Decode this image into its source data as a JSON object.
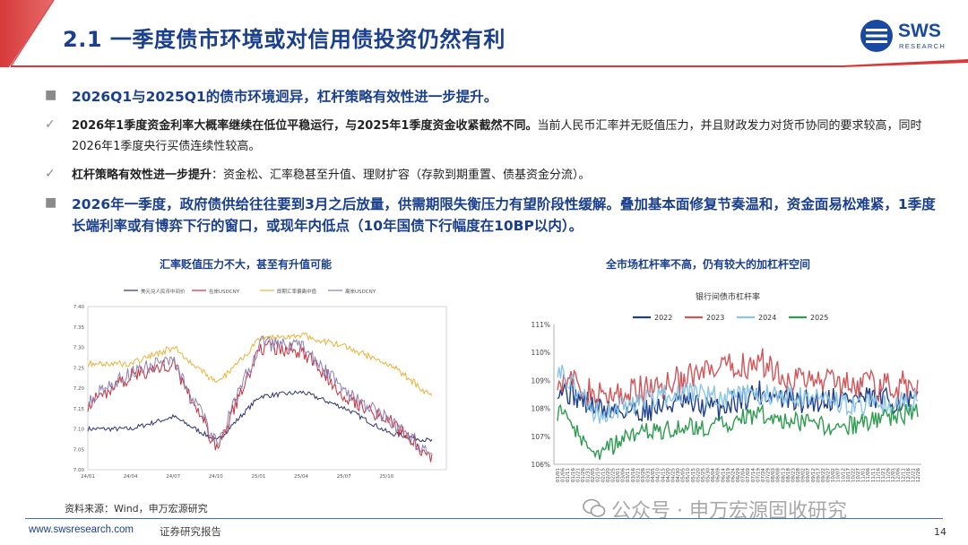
{
  "title": "2.1 一季度债市环境或对信用债投资仍然有利",
  "logo": {
    "text": "SWS",
    "sub": "RESEARCH"
  },
  "bullets": [
    {
      "level": 1,
      "marker": "■",
      "text": "2026Q1与2025Q1的债市环境迥异，杠杆策略有效性进一步提升。"
    },
    {
      "level": 2,
      "marker": "✓",
      "bold": "2026年1季度资金利率大概率继续在低位平稳运行，与2025年1季度资金收紧截然不同。",
      "text": "当前人民币汇率并无贬值压力，并且财政发力对货币协同的要求较高，同时2026年1季度央行买债连续性较高。"
    },
    {
      "level": 2,
      "marker": "✓",
      "bold": "杠杆策略有效性进一步提升",
      "text": "：资金松、汇率稳甚至升值、理财扩容（存款到期重置、债基资金分流）。"
    },
    {
      "level": 1,
      "marker": "■",
      "text": "2026年一季度，政府债供给往往要到3月之后放量，供需期限失衡压力有望阶段性缓解。叠加基本面修复节奏温和，资金面易松难紧，1季度长端利率或有博弈下行的窗口，或现年内低点（10年国债下行幅度在10BP以内）。"
    }
  ],
  "chart_left": {
    "title": "汇率贬值压力不大，甚至有升值可能",
    "legend": [
      "美元兑人民币中间价",
      "在岸USDCNY",
      "即期汇率偏离中值",
      "离岸USDCNY"
    ],
    "colors": [
      "#2c3570",
      "#c8303a",
      "#e8b33a",
      "#9080b0"
    ],
    "y_ticks": [
      "7.40",
      "7.35",
      "7.30",
      "7.25",
      "7.20",
      "7.15",
      "7.10",
      "7.05",
      "7.00"
    ],
    "x_ticks": [
      "24/01",
      "24/04",
      "24/07",
      "24/10",
      "25/01",
      "25/04",
      "25/07",
      "25/10"
    ]
  },
  "chart_right": {
    "title": "全市场杠杆率不高，仍有较大的加杠杆空间",
    "subtitle": "银行间债市杠杆率",
    "legend": [
      "2022",
      "2023",
      "2024",
      "2025"
    ],
    "colors": [
      "#1f3f8a",
      "#d0565a",
      "#8ac4e6",
      "#2e9c4e"
    ],
    "y_ticks": [
      "111%",
      "110%",
      "109%",
      "108%",
      "107%",
      "106%"
    ],
    "x_ticks": [
      "01/01",
      "01/06",
      "01/11",
      "01/16",
      "01/21",
      "01/26",
      "01/31",
      "02/05",
      "02/10",
      "02/15",
      "02/20",
      "02/25",
      "03/01",
      "03/06",
      "03/11",
      "03/16",
      "03/21",
      "03/26",
      "03/31",
      "04/05",
      "04/10",
      "04/15",
      "04/20",
      "04/25",
      "04/30",
      "05/05",
      "05/10",
      "05/15",
      "05/20",
      "05/25",
      "05/30",
      "06/04",
      "06/09",
      "06/14",
      "06/19",
      "06/24",
      "06/29",
      "07/04",
      "07/09",
      "07/14",
      "07/19",
      "07/24",
      "07/29",
      "08/03",
      "08/08",
      "08/13",
      "08/18",
      "08/23",
      "08/28",
      "09/02",
      "09/07",
      "09/12",
      "09/17",
      "09/22",
      "09/27",
      "10/02",
      "10/07",
      "10/12",
      "10/17",
      "10/22",
      "10/27",
      "11/01",
      "11/06",
      "11/11",
      "11/16",
      "11/21",
      "11/26",
      "12/01",
      "12/06",
      "12/11",
      "12/16",
      "12/21",
      "12/26"
    ]
  },
  "chart_data": [
    {
      "type": "line",
      "title": "汇率贬值压力不大，甚至有升值可能",
      "ylim": [
        7.0,
        7.4
      ],
      "x": [
        "24/01",
        "24/04",
        "24/07",
        "24/10",
        "25/01",
        "25/04",
        "25/07",
        "25/10",
        "25/12"
      ],
      "series": [
        {
          "name": "美元兑人民币中间价",
          "values": [
            7.1,
            7.1,
            7.13,
            7.07,
            7.18,
            7.19,
            7.15,
            7.09,
            7.07
          ]
        },
        {
          "name": "在岸USDCNY",
          "values": [
            7.16,
            7.23,
            7.26,
            7.05,
            7.3,
            7.29,
            7.18,
            7.12,
            7.03
          ]
        },
        {
          "name": "即期汇率偏离中值",
          "values": [
            7.26,
            7.26,
            7.3,
            7.21,
            7.32,
            7.33,
            7.3,
            7.26,
            7.18
          ]
        },
        {
          "name": "离岸USDCNY",
          "values": [
            7.17,
            7.24,
            7.27,
            7.06,
            7.31,
            7.3,
            7.19,
            7.12,
            7.04
          ]
        }
      ]
    },
    {
      "type": "line",
      "title": "银行间债市杠杆率",
      "ylim": [
        106,
        111
      ],
      "x": [
        "01/01",
        "02/10",
        "03/21",
        "04/30",
        "06/09",
        "07/19",
        "08/28",
        "10/07",
        "11/16",
        "12/27"
      ],
      "series": [
        {
          "name": "2022",
          "values": [
            108.8,
            108.0,
            107.9,
            108.2,
            108.0,
            108.6,
            108.2,
            108.4,
            108.3,
            108.2
          ]
        },
        {
          "name": "2023",
          "values": [
            109.2,
            108.4,
            108.6,
            109.0,
            109.3,
            109.7,
            109.0,
            109.0,
            108.8,
            108.8
          ]
        },
        {
          "name": "2024",
          "values": [
            109.5,
            107.8,
            108.2,
            108.6,
            108.4,
            108.5,
            108.4,
            108.2,
            108.1,
            108.3
          ]
        },
        {
          "name": "2025",
          "values": [
            107.9,
            106.4,
            107.1,
            107.3,
            107.4,
            107.8,
            107.5,
            107.3,
            107.6,
            107.9
          ]
        }
      ]
    }
  ],
  "source": "资料来源：Wind，申万宏源研究",
  "footer": {
    "url": "www.swsresearch.com",
    "report": "证券研究报告",
    "page": "14"
  },
  "watermark": "公众号 · 申万宏源固收研究"
}
